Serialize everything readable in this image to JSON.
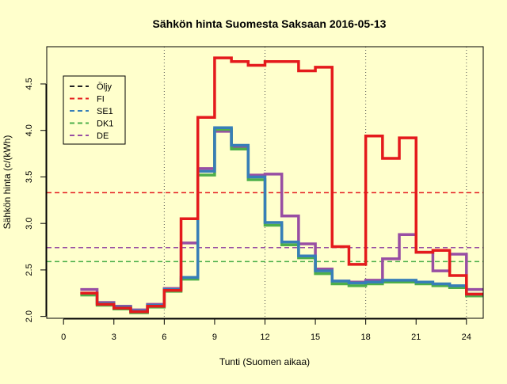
{
  "chart_data": {
    "type": "line",
    "title": "Sähkön hinta Suomesta Saksaan 2016-05-13",
    "xlabel": "Tunti (Suomen aikaa)",
    "ylabel": "Sähkön hinta (c/(kWh)",
    "xlim": [
      -1,
      25
    ],
    "ylim": [
      1.98,
      4.9
    ],
    "x_ticks": [
      0,
      3,
      6,
      9,
      12,
      15,
      18,
      21,
      24
    ],
    "y_ticks": [
      2.0,
      2.5,
      3.0,
      3.5,
      4.0,
      4.5
    ],
    "y_tick_labels": [
      "2.0",
      "2.5",
      "3.0",
      "3.5",
      "4.0",
      "4.5"
    ],
    "vertical_gridlines": [
      6,
      12,
      18,
      24
    ],
    "legend_position": "top-left",
    "step_x": [
      1,
      2,
      3,
      4,
      5,
      6,
      7,
      8,
      9,
      10,
      11,
      12,
      13,
      14,
      15,
      16,
      17,
      18,
      19,
      20,
      21,
      22,
      23,
      24,
      25
    ],
    "series": [
      {
        "name": "Öljy",
        "color": "#222222",
        "dash": true,
        "show_line": false,
        "values": []
      },
      {
        "name": "FI",
        "color": "#e41a1c",
        "dash": true,
        "mean": 3.33,
        "values": [
          2.25,
          2.13,
          2.09,
          2.05,
          2.11,
          2.28,
          3.05,
          4.14,
          4.78,
          4.74,
          4.7,
          4.74,
          4.74,
          4.64,
          4.68,
          2.75,
          2.56,
          3.94,
          3.7,
          3.92,
          2.69,
          2.71,
          2.44,
          2.24
        ]
      },
      {
        "name": "SE1",
        "color": "#377eb8",
        "dash": true,
        "mean": null,
        "values": [
          2.25,
          2.14,
          2.1,
          2.06,
          2.12,
          2.29,
          2.42,
          3.56,
          4.03,
          3.84,
          3.5,
          3.01,
          2.8,
          2.65,
          2.49,
          2.38,
          2.36,
          2.37,
          2.39,
          2.39,
          2.37,
          2.35,
          2.33,
          2.24
        ]
      },
      {
        "name": "DK1",
        "color": "#4daf4a",
        "dash": true,
        "mean": 2.59,
        "values": [
          2.23,
          2.12,
          2.08,
          2.04,
          2.1,
          2.27,
          2.4,
          3.52,
          4.01,
          3.8,
          3.47,
          2.98,
          2.77,
          2.63,
          2.46,
          2.35,
          2.33,
          2.35,
          2.37,
          2.37,
          2.35,
          2.33,
          2.31,
          2.22
        ]
      },
      {
        "name": "DE",
        "color": "#984ea3",
        "dash": true,
        "mean": 2.74,
        "values": [
          2.29,
          2.15,
          2.11,
          2.07,
          2.13,
          2.3,
          2.79,
          3.59,
          3.99,
          3.82,
          3.52,
          3.53,
          3.08,
          2.78,
          2.51,
          2.38,
          2.37,
          2.39,
          2.62,
          2.88,
          2.69,
          2.49,
          2.67,
          2.29
        ]
      }
    ]
  }
}
